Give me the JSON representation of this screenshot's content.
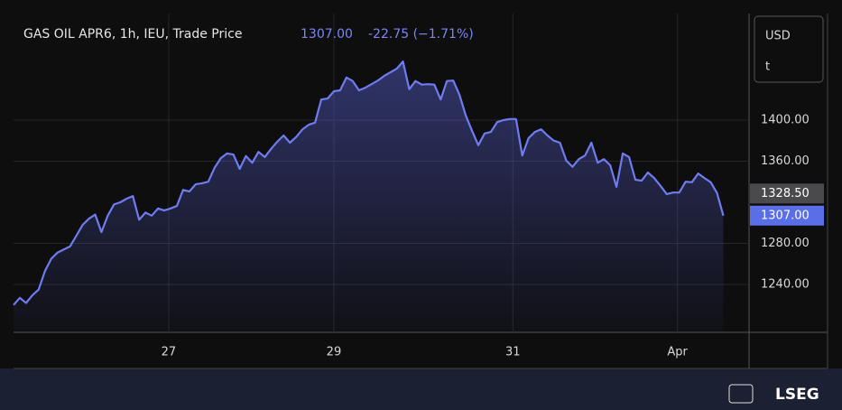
{
  "chart_data": {
    "type": "area-line",
    "title": "GAS OIL APR6, 1h, IEU, Trade Price",
    "price_label": "1307.00",
    "change_label": "-22.75 (−1.71%)",
    "currency": "USD",
    "unit": "t",
    "brand": "LSEG",
    "color": "#6f7cf0",
    "x": [
      0,
      1,
      2,
      3,
      4,
      5,
      6,
      7,
      8,
      9,
      10,
      11,
      12,
      13,
      14,
      15,
      16,
      17,
      18,
      19,
      20,
      21,
      22,
      23,
      24,
      25,
      26,
      27,
      28,
      29,
      30,
      31,
      32,
      33,
      34,
      35,
      36,
      37,
      38,
      39,
      40,
      41,
      42,
      43,
      44,
      45,
      46,
      47,
      48,
      49,
      50,
      51,
      52,
      53,
      54,
      55,
      56,
      57,
      58,
      59,
      60,
      61,
      62,
      63,
      64,
      65,
      66,
      67,
      68,
      69,
      70,
      71,
      72,
      73,
      74,
      75,
      76,
      77,
      78,
      79,
      80,
      81,
      82,
      83,
      84,
      85,
      86,
      87,
      88,
      89,
      90,
      91,
      92,
      93,
      94,
      95,
      96,
      97,
      98,
      99,
      100,
      101,
      102,
      103,
      104,
      105,
      106,
      107,
      108,
      109,
      110,
      111,
      112,
      113
    ],
    "values": [
      1220,
      1227,
      1222,
      1229.5,
      1235,
      1253,
      1265,
      1271,
      1274,
      1277,
      1287.5,
      1298,
      1304,
      1308,
      1291,
      1307,
      1318,
      1320,
      1323.5,
      1326,
      1303,
      1310,
      1307,
      1314,
      1312,
      1314,
      1316.5,
      1332,
      1330.5,
      1337.5,
      1338.5,
      1340,
      1353.5,
      1363,
      1367.5,
      1366.5,
      1352.5,
      1365,
      1358.5,
      1369,
      1364,
      1372,
      1379,
      1385,
      1378,
      1383.5,
      1391,
      1395.5,
      1397.5,
      1420,
      1421,
      1428,
      1429,
      1441.5,
      1438,
      1429,
      1431.5,
      1435,
      1438.5,
      1443,
      1446.5,
      1450,
      1457,
      1430,
      1438,
      1434.5,
      1435,
      1434.5,
      1420,
      1438,
      1438.5,
      1424.5,
      1404.5,
      1389.5,
      1375.5,
      1387,
      1388.5,
      1398,
      1400,
      1401,
      1401,
      1365.5,
      1382.5,
      1388.5,
      1391,
      1385,
      1380,
      1378,
      1360.5,
      1354.5,
      1362,
      1365.5,
      1378,
      1358.5,
      1362,
      1356,
      1335,
      1367.5,
      1364,
      1342,
      1341,
      1349,
      1343.5,
      1336,
      1328,
      1329.5,
      1329.5,
      1340,
      1339.5,
      1348,
      1343.5,
      1339.5,
      1329,
      1307
    ],
    "xlim": [
      0,
      117.1
    ],
    "ylim": [
      1193.4,
      1503.7
    ],
    "xticks": [
      {
        "value": 24.7,
        "label": "27"
      },
      {
        "value": 51,
        "label": "29"
      },
      {
        "value": 79.5,
        "label": "31"
      },
      {
        "value": 105.7,
        "label": "Apr"
      }
    ],
    "yticks": [
      {
        "value": 1240,
        "label": "1240.00"
      },
      {
        "value": 1280,
        "label": "1280.00"
      },
      {
        "value": 1360,
        "label": "1360.00"
      },
      {
        "value": 1400,
        "label": "1400.00"
      }
    ],
    "grid": true,
    "price_tags": [
      {
        "value": 1328.5,
        "label": "1328.50",
        "color": "#4a4a4d"
      },
      {
        "value": 1307,
        "label": "1307.00",
        "color": "#5a6ee8"
      }
    ]
  }
}
